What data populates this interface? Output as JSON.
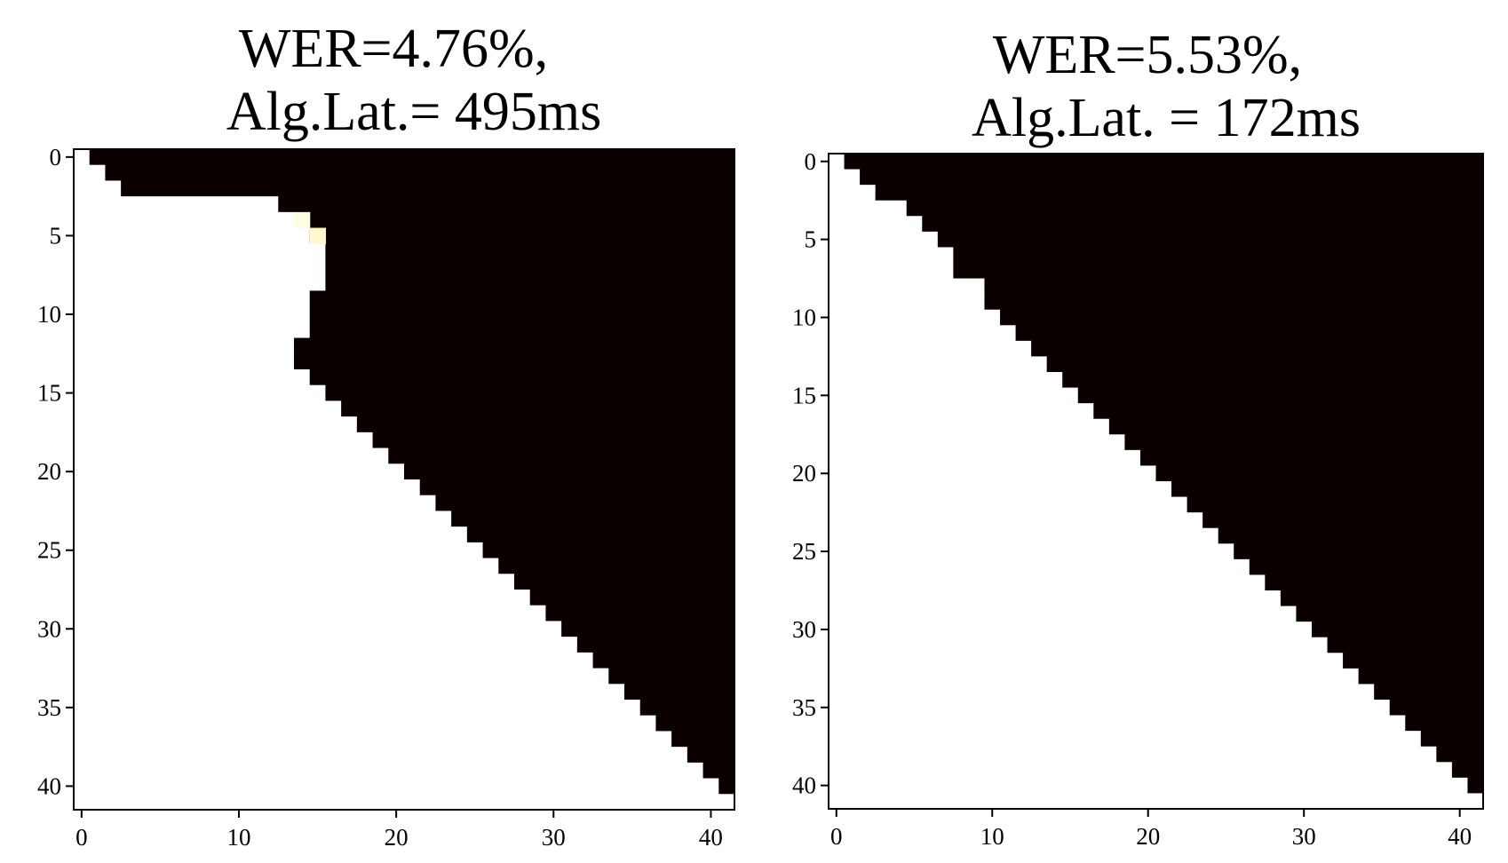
{
  "chart_data": [
    {
      "type": "heatmap",
      "title_lines": [
        "WER=4.76%,",
        " Alg.Lat.= 495ms"
      ],
      "colormap": "hot",
      "value_range": [
        0,
        1
      ],
      "rows": 42,
      "cols": 42,
      "xlim": [
        -0.5,
        41.5
      ],
      "ylim": [
        41.5,
        -0.5
      ],
      "x_ticks": [
        "0",
        "10",
        "20",
        "30",
        "40"
      ],
      "y_ticks": [
        "0",
        "5",
        "10",
        "15",
        "20",
        "25",
        "30",
        "35",
        "40"
      ],
      "row_attended_columns": [
        1,
        2,
        3,
        13,
        14,
        15,
        16,
        16,
        16,
        15,
        15,
        15,
        14,
        14,
        15,
        16,
        17,
        18,
        19,
        20,
        21,
        22,
        23,
        24,
        25,
        26,
        27,
        28,
        29,
        30,
        31,
        32,
        33,
        34,
        35,
        36,
        37,
        38,
        39,
        40,
        41,
        42
      ],
      "partial_cells": [
        {
          "row": 4,
          "col": 14,
          "value": 0.97
        },
        {
          "row": 5,
          "col": 15,
          "value": 0.93
        }
      ],
      "colors": {
        "attended": "#ffffff",
        "masked": "#0a0000",
        "partial_4_14": "#fffde6",
        "partial_5_15": "#fff8cc"
      }
    },
    {
      "type": "heatmap",
      "title_lines": [
        "WER=5.53%,",
        " Alg.Lat. = 172ms"
      ],
      "colormap": "hot",
      "value_range": [
        0,
        1
      ],
      "rows": 42,
      "cols": 42,
      "xlim": [
        -0.5,
        41.5
      ],
      "ylim": [
        41.5,
        -0.5
      ],
      "x_ticks": [
        "0",
        "10",
        "20",
        "30",
        "40"
      ],
      "y_ticks": [
        "0",
        "5",
        "10",
        "15",
        "20",
        "25",
        "30",
        "35",
        "40"
      ],
      "row_attended_columns": [
        1,
        2,
        3,
        5,
        6,
        7,
        8,
        8,
        10,
        10,
        11,
        12,
        13,
        14,
        15,
        16,
        17,
        18,
        19,
        20,
        21,
        22,
        23,
        24,
        25,
        26,
        27,
        28,
        29,
        30,
        31,
        32,
        33,
        34,
        35,
        36,
        37,
        38,
        39,
        40,
        41,
        42
      ],
      "partial_cells": [],
      "colors": {
        "attended": "#ffffff",
        "masked": "#0a0000"
      }
    }
  ]
}
